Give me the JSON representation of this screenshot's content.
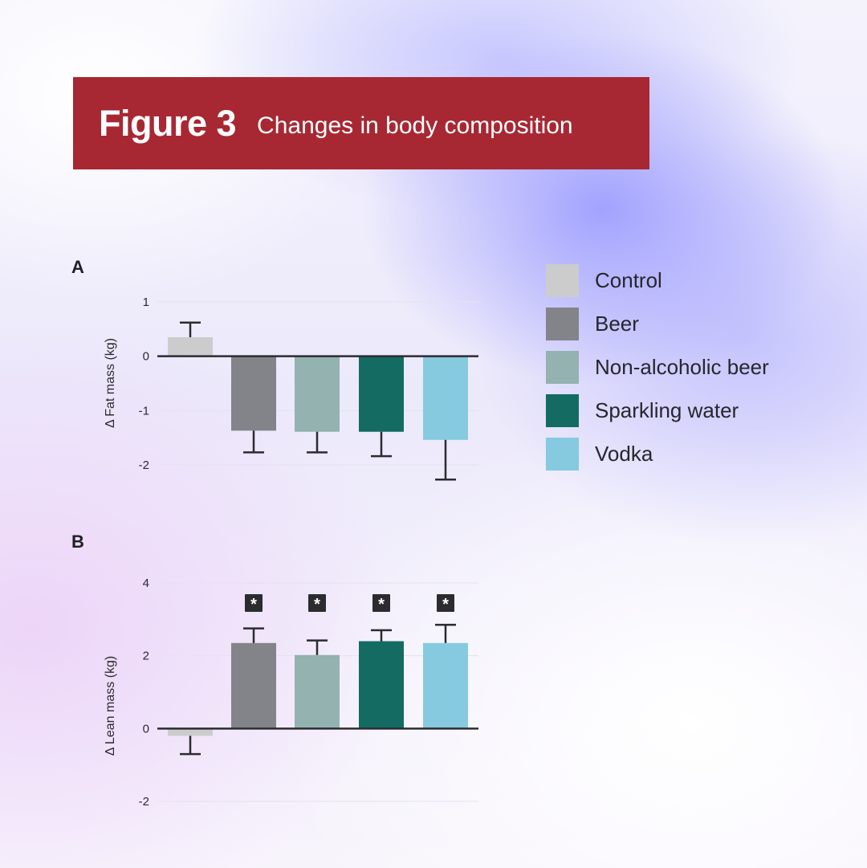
{
  "header": {
    "figure_number": "Figure 3",
    "title": "Changes in body composition"
  },
  "legend": [
    {
      "label": "Control",
      "color": "#cccccc"
    },
    {
      "label": "Beer",
      "color": "#838489"
    },
    {
      "label": "Non-alcoholic beer",
      "color": "#93b2b0"
    },
    {
      "label": "Sparkling water",
      "color": "#136b61"
    },
    {
      "label": "Vodka",
      "color": "#86cae0"
    }
  ],
  "chart_data": [
    {
      "panel": "A",
      "type": "bar",
      "ylabel": "Δ Fat mass (kg)",
      "yticks": [
        "1",
        "0",
        "-1",
        "-2"
      ],
      "ylim": [
        -2.25,
        1
      ],
      "grid": true,
      "categories": [
        "Control",
        "Beer",
        "Non-alcoholic beer",
        "Sparkling water",
        "Vodka"
      ],
      "values": [
        0.35,
        -1.37,
        -1.39,
        -1.39,
        -1.54
      ],
      "error": [
        0.27,
        0.4,
        0.38,
        0.45,
        0.73
      ],
      "significance": [
        "",
        "",
        "",
        "",
        ""
      ]
    },
    {
      "panel": "B",
      "type": "bar",
      "ylabel": "Δ Lean mass (kg)",
      "yticks": [
        "4",
        "2",
        "0",
        "-2"
      ],
      "ylim": [
        -2,
        4
      ],
      "grid": true,
      "categories": [
        "Control",
        "Beer",
        "Non-alcoholic beer",
        "Sparkling water",
        "Vodka"
      ],
      "values": [
        -0.2,
        2.35,
        2.02,
        2.4,
        2.35
      ],
      "error": [
        0.5,
        0.4,
        0.4,
        0.3,
        0.5
      ],
      "significance": [
        "",
        "*",
        "*",
        "*",
        "*"
      ]
    }
  ]
}
